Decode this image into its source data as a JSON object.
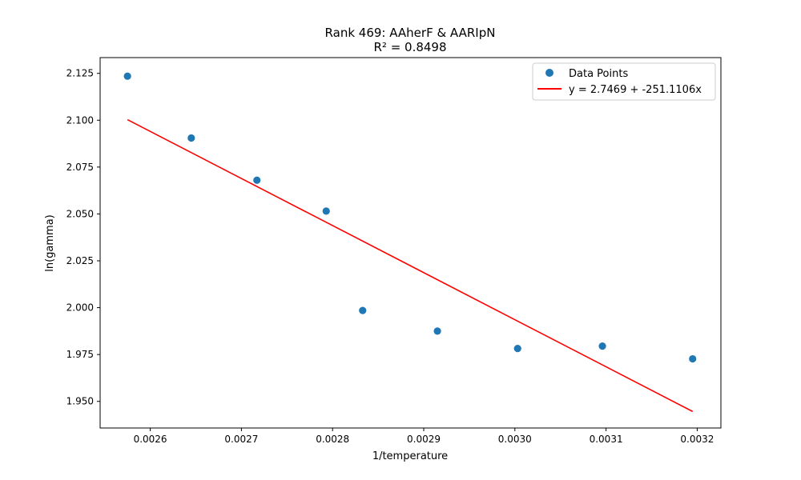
{
  "chart_data": {
    "type": "scatter",
    "title": "Rank 469: AAherF & AARIpN",
    "subtitle": "R² = 0.8498",
    "xlabel": "1/temperature",
    "ylabel": "ln(gamma)",
    "xlim": [
      0.002545,
      0.003226
    ],
    "ylim": [
      1.9358,
      2.1334
    ],
    "x_ticks": [
      {
        "value": 0.0026,
        "label": "0.0026"
      },
      {
        "value": 0.0027,
        "label": "0.0027"
      },
      {
        "value": 0.0028,
        "label": "0.0028"
      },
      {
        "value": 0.0029,
        "label": "0.0029"
      },
      {
        "value": 0.003,
        "label": "0.0030"
      },
      {
        "value": 0.0031,
        "label": "0.0031"
      },
      {
        "value": 0.0032,
        "label": "0.0032"
      }
    ],
    "y_ticks": [
      {
        "value": 1.95,
        "label": "1.950"
      },
      {
        "value": 1.975,
        "label": "1.975"
      },
      {
        "value": 2.0,
        "label": "2.000"
      },
      {
        "value": 2.025,
        "label": "2.025"
      },
      {
        "value": 2.05,
        "label": "2.050"
      },
      {
        "value": 2.075,
        "label": "2.075"
      },
      {
        "value": 2.1,
        "label": "2.100"
      },
      {
        "value": 2.125,
        "label": "2.125"
      }
    ],
    "series": [
      {
        "name": "Data Points",
        "kind": "scatter",
        "color": "#1f77b4",
        "points": [
          {
            "x": 0.002575,
            "y": 2.1235
          },
          {
            "x": 0.002645,
            "y": 2.0905
          },
          {
            "x": 0.002717,
            "y": 2.068
          },
          {
            "x": 0.002793,
            "y": 2.0515
          },
          {
            "x": 0.002833,
            "y": 1.9985
          },
          {
            "x": 0.002915,
            "y": 1.9875
          },
          {
            "x": 0.003003,
            "y": 1.9782
          },
          {
            "x": 0.003096,
            "y": 1.9795
          },
          {
            "x": 0.003195,
            "y": 1.9727
          }
        ]
      },
      {
        "name": "y = 2.7469 + -251.1106x",
        "kind": "line",
        "color": "#ff0000",
        "intercept": 2.7469,
        "slope": -251.1106,
        "x_range": [
          0.002575,
          0.003195
        ]
      }
    ],
    "legend": {
      "position": "top-right",
      "entries": [
        "Data Points",
        "y = 2.7469 + -251.1106x"
      ]
    },
    "grid": false
  }
}
